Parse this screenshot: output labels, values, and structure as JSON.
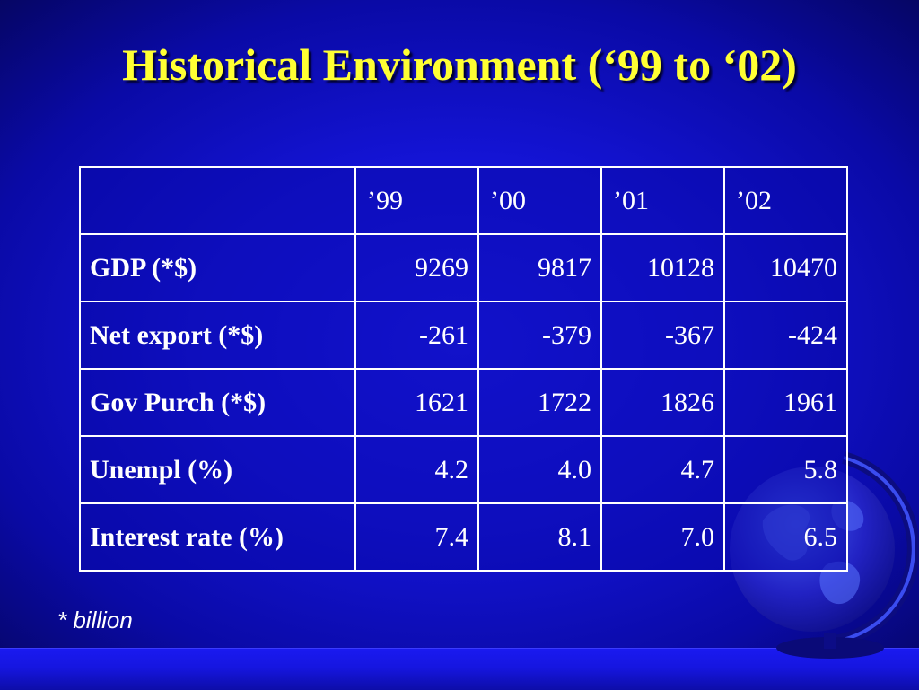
{
  "slide": {
    "title": "Historical Environment (‘99 to ‘02)",
    "footnote": "* billion"
  },
  "table": {
    "columns": [
      "’99",
      "’00",
      "’01",
      "’02"
    ],
    "rows": [
      {
        "label": "GDP (*$)",
        "values": [
          "9269",
          "9817",
          "10128",
          "10470"
        ]
      },
      {
        "label": "Net export (*$)",
        "values": [
          "-261",
          "-379",
          "-367",
          "-424"
        ]
      },
      {
        "label": "Gov Purch (*$)",
        "values": [
          "1621",
          "1722",
          "1826",
          "1961"
        ]
      },
      {
        "label": "Unempl (%)",
        "values": [
          "4.2",
          "4.0",
          "4.7",
          "5.8"
        ]
      },
      {
        "label": "Interest rate (%)",
        "values": [
          "7.4",
          "8.1",
          "7.0",
          "6.5"
        ]
      }
    ]
  },
  "decor": {
    "icon": "globe-icon",
    "colors": {
      "title": "#ffff33",
      "text": "#ffffff",
      "background": "#1414d6"
    }
  }
}
